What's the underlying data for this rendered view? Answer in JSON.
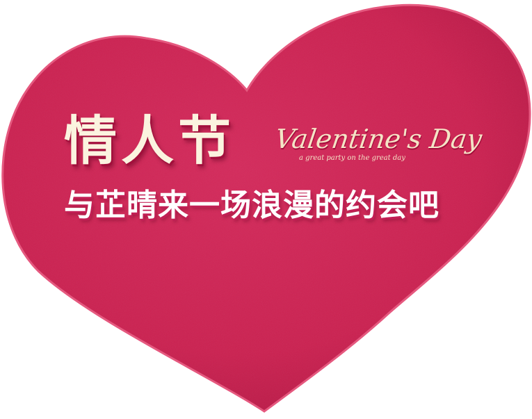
{
  "colors": {
    "heart": "#cd2150",
    "heart_edge": "#e0446f",
    "title_text": "#fbf3df",
    "subtitle_text": "#ffffff",
    "background": "#ffffff"
  },
  "title": "情人节",
  "subtitle": "与芷晴来一场浪漫的约会吧",
  "script_title": "Valentine's Day",
  "script_subtitle": "a great party on the great day"
}
